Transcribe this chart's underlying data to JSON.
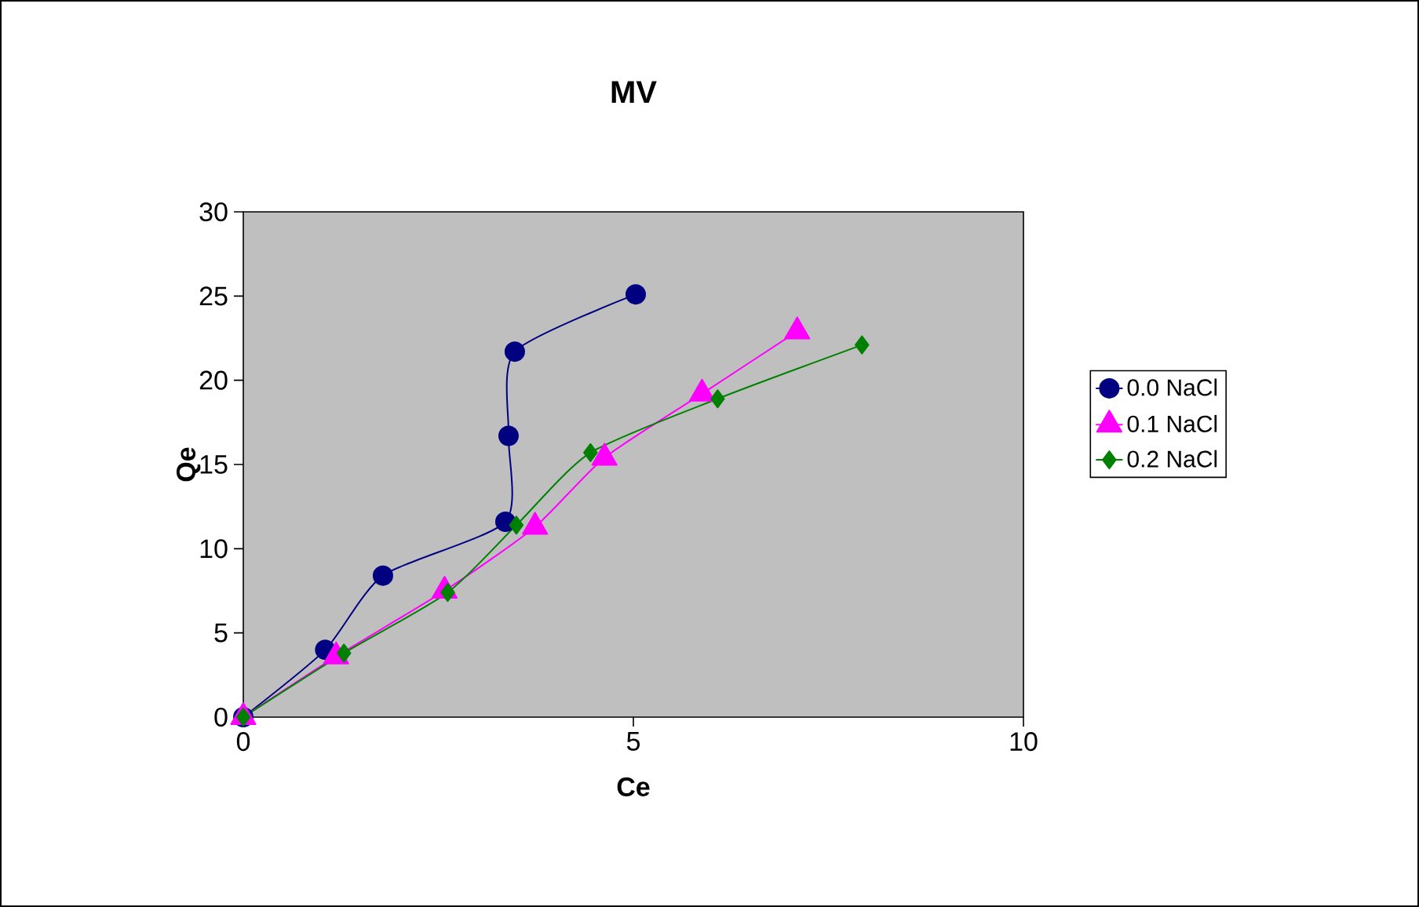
{
  "chart_data": {
    "type": "line",
    "title": "MV",
    "xlabel": "Ce",
    "ylabel": "Qe",
    "xlim": [
      0,
      10
    ],
    "ylim": [
      0,
      30
    ],
    "xticks": [
      0,
      5,
      10
    ],
    "yticks": [
      0,
      5,
      10,
      15,
      20,
      25,
      30
    ],
    "grid": false,
    "legend": "right",
    "series": [
      {
        "name": "0.0 NaCl",
        "color": "#000080",
        "marker": "circle",
        "x": [
          0,
          1.05,
          1.79,
          3.36,
          3.4,
          3.48,
          5.03
        ],
        "values": [
          0,
          4.0,
          8.4,
          11.6,
          16.7,
          21.7,
          25.1
        ]
      },
      {
        "name": "0.1 NaCl",
        "color": "#ff00ff",
        "marker": "triangle",
        "x": [
          0,
          1.19,
          2.58,
          3.74,
          4.63,
          5.88,
          7.1
        ],
        "values": [
          0,
          3.6,
          7.5,
          11.3,
          15.4,
          19.2,
          22.9
        ]
      },
      {
        "name": "0.2 NaCl",
        "color": "#008000",
        "marker": "diamond",
        "x": [
          0,
          1.29,
          2.62,
          3.5,
          4.45,
          6.08,
          7.93
        ],
        "values": [
          0,
          3.8,
          7.4,
          11.4,
          15.7,
          18.9,
          22.1
        ]
      }
    ]
  }
}
